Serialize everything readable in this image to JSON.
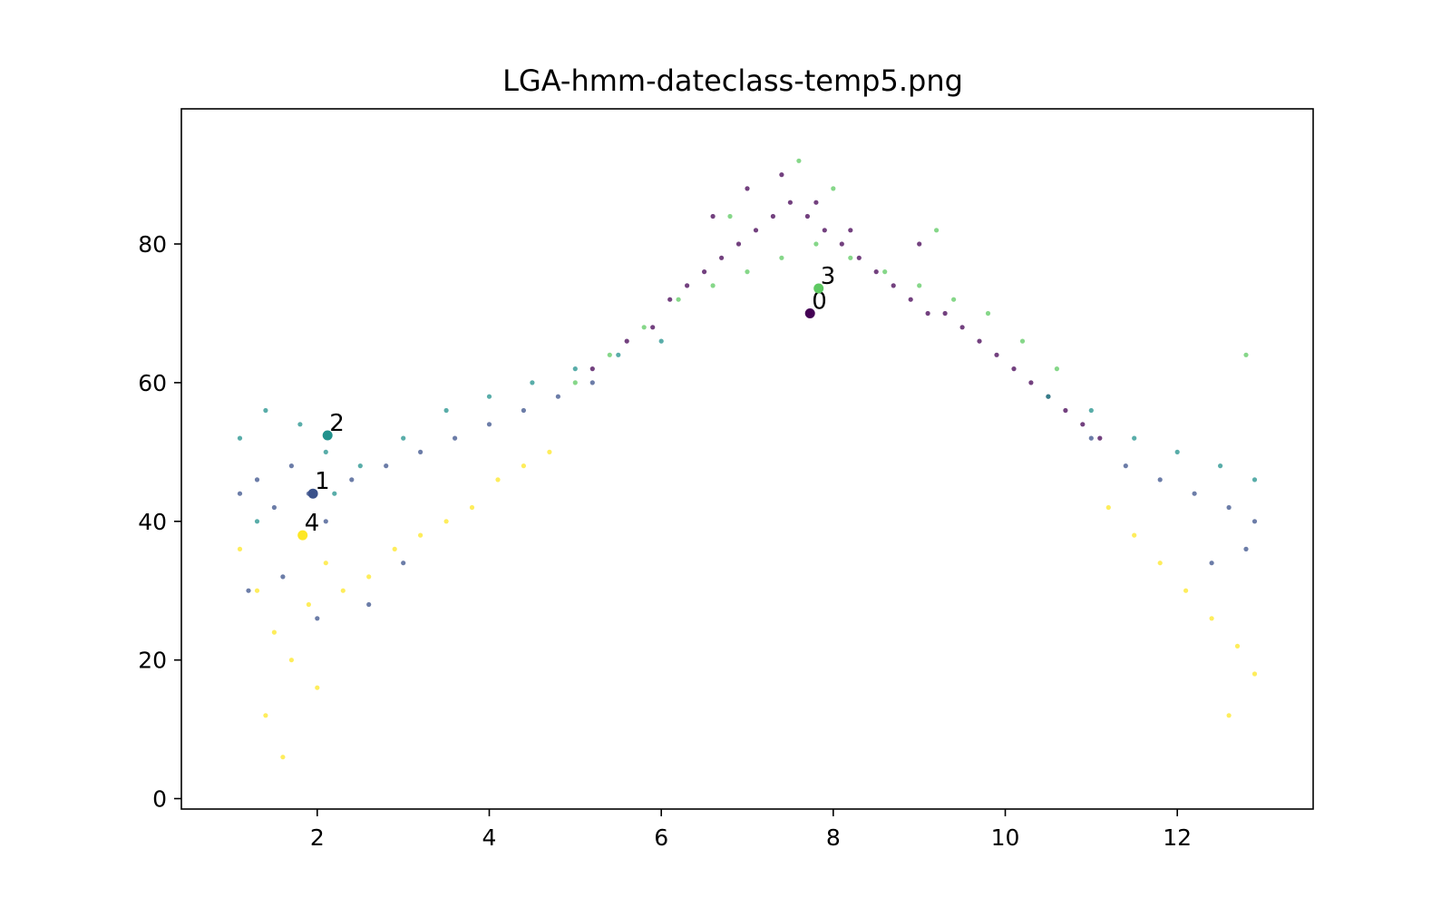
{
  "chart_data": {
    "type": "scatter",
    "title": "LGA-hmm-dateclass-temp5.png",
    "xlabel": "",
    "ylabel": "",
    "xlim": [
      0.42,
      13.58
    ],
    "ylim": [
      -1.5,
      99.5
    ],
    "xticks": [
      2,
      4,
      6,
      8,
      10,
      12
    ],
    "yticks": [
      0,
      20,
      40,
      60,
      80
    ],
    "grid": false,
    "legend": "none",
    "colormap": "viridis",
    "class_colors": [
      "#440154",
      "#3b528b",
      "#21918c",
      "#5ec962",
      "#fde725"
    ],
    "series": [
      {
        "class": 0,
        "x": [
          5.2,
          5.6,
          5.9,
          6.1,
          6.3,
          6.5,
          6.7,
          6.9,
          7.1,
          7.3,
          7.5,
          7.7,
          7.9,
          8.1,
          8.3,
          8.5,
          8.7,
          8.9,
          9.1,
          9.3,
          9.5,
          9.7,
          9.9,
          10.1,
          10.3,
          10.5,
          10.7,
          10.9,
          11.1,
          7.0,
          7.4,
          7.8,
          8.2,
          6.6,
          9.0
        ],
        "y": [
          62,
          66,
          68,
          72,
          74,
          76,
          78,
          80,
          82,
          84,
          86,
          84,
          82,
          80,
          78,
          76,
          74,
          72,
          70,
          70,
          68,
          66,
          64,
          62,
          60,
          58,
          56,
          54,
          52,
          88,
          90,
          86,
          82,
          84,
          80
        ]
      },
      {
        "class": 1,
        "x": [
          1.1,
          1.3,
          1.5,
          1.7,
          1.9,
          2.1,
          2.4,
          2.8,
          3.2,
          3.6,
          4.0,
          4.4,
          4.8,
          5.2,
          11.0,
          11.4,
          11.8,
          12.2,
          12.6,
          12.9,
          1.2,
          1.6,
          2.0,
          2.6,
          3.0,
          12.4,
          12.8
        ],
        "y": [
          44,
          46,
          42,
          48,
          44,
          40,
          46,
          48,
          50,
          52,
          54,
          56,
          58,
          60,
          52,
          48,
          46,
          44,
          42,
          40,
          30,
          32,
          26,
          28,
          34,
          34,
          36
        ]
      },
      {
        "class": 2,
        "x": [
          1.1,
          1.4,
          1.8,
          2.1,
          2.5,
          3.0,
          3.5,
          4.0,
          4.5,
          5.0,
          5.5,
          6.0,
          10.5,
          11.0,
          11.5,
          12.0,
          12.5,
          12.9,
          1.3,
          2.2
        ],
        "y": [
          52,
          56,
          54,
          50,
          48,
          52,
          56,
          58,
          60,
          62,
          64,
          66,
          58,
          56,
          52,
          50,
          48,
          46,
          40,
          44
        ]
      },
      {
        "class": 3,
        "x": [
          5.0,
          5.4,
          5.8,
          6.2,
          6.6,
          7.0,
          7.4,
          7.8,
          8.2,
          8.6,
          9.0,
          9.4,
          9.8,
          10.2,
          10.6,
          7.6,
          8.0,
          6.8,
          9.2,
          12.8
        ],
        "y": [
          60,
          64,
          68,
          72,
          74,
          76,
          78,
          80,
          78,
          76,
          74,
          72,
          70,
          66,
          62,
          92,
          88,
          84,
          82,
          64
        ]
      },
      {
        "class": 4,
        "x": [
          1.1,
          1.3,
          1.5,
          1.7,
          1.9,
          2.1,
          2.3,
          2.6,
          2.9,
          3.2,
          3.5,
          3.8,
          4.1,
          4.4,
          4.7,
          11.2,
          11.5,
          11.8,
          12.1,
          12.4,
          12.7,
          12.9,
          1.4,
          1.6,
          2.0,
          12.6
        ],
        "y": [
          36,
          30,
          24,
          20,
          28,
          34,
          30,
          32,
          36,
          38,
          40,
          42,
          46,
          48,
          50,
          42,
          38,
          34,
          30,
          26,
          22,
          18,
          12,
          6,
          16,
          12
        ]
      }
    ],
    "centroids": [
      {
        "label": "0",
        "class": 0,
        "x": 7.73,
        "y": 70.0
      },
      {
        "label": "1",
        "class": 1,
        "x": 1.95,
        "y": 44.0
      },
      {
        "label": "2",
        "class": 2,
        "x": 2.12,
        "y": 52.4
      },
      {
        "label": "3",
        "class": 3,
        "x": 7.83,
        "y": 73.6
      },
      {
        "label": "4",
        "class": 4,
        "x": 1.83,
        "y": 38.0
      }
    ]
  }
}
